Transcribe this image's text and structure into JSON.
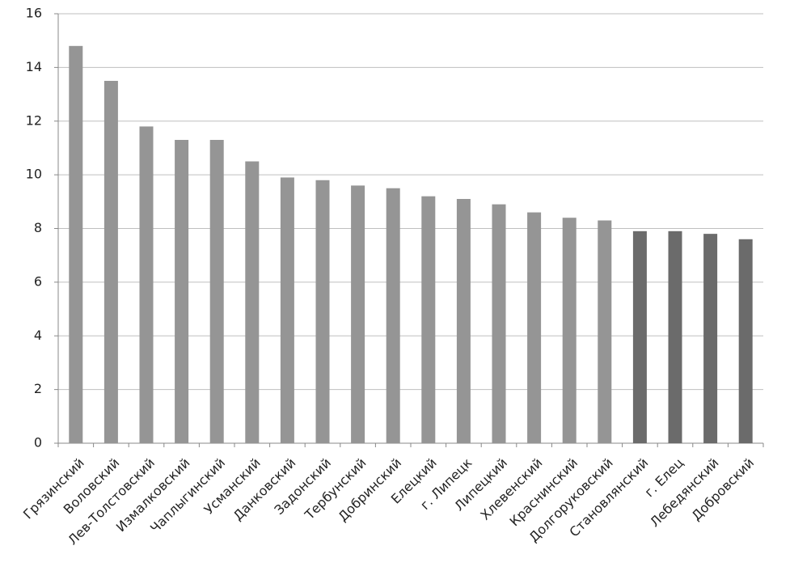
{
  "chart_data": {
    "type": "bar",
    "categories": [
      "Грязинский",
      "Воловский",
      "Лев-Толстовский",
      "Измалковский",
      "Чаплыгинский",
      "Усманский",
      "Данковский",
      "Задонский",
      "Тербунский",
      "Добринский",
      "Елецкий",
      "г. Липецк",
      "Липецкий",
      "Хлевенский",
      "Краснинский",
      "Долгоруковский",
      "Становлянский",
      "г. Елец",
      "Лебедянский",
      "Добровский"
    ],
    "values": [
      14.8,
      13.5,
      11.8,
      11.3,
      11.3,
      10.5,
      9.9,
      9.8,
      9.6,
      9.5,
      9.2,
      9.1,
      8.9,
      8.6,
      8.4,
      8.3,
      7.9,
      7.9,
      7.8,
      7.6
    ],
    "colors": [
      "#959595",
      "#959595",
      "#959595",
      "#959595",
      "#959595",
      "#959595",
      "#959595",
      "#959595",
      "#959595",
      "#959595",
      "#959595",
      "#959595",
      "#959595",
      "#959595",
      "#959595",
      "#959595",
      "#6b6b6b",
      "#6b6b6b",
      "#6b6b6b",
      "#6b6b6b"
    ],
    "ylim": [
      0,
      16
    ],
    "yticks": [
      0,
      2,
      4,
      6,
      8,
      10,
      12,
      14,
      16
    ],
    "grid": true
  }
}
